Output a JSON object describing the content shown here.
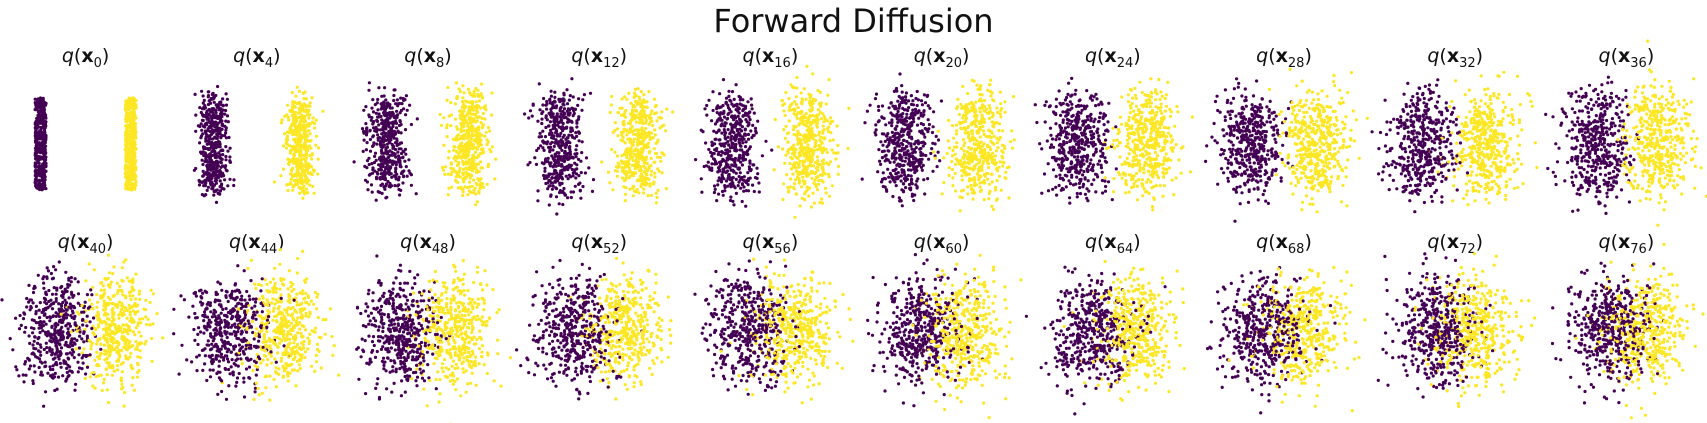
{
  "chart_data": {
    "type": "scatter",
    "title": "Forward Diffusion",
    "colors": {
      "class_a": "#440154",
      "class_b": "#fde725"
    },
    "panel_label_parts": {
      "func": "q",
      "var": "x"
    },
    "panels": [
      {
        "label": "q(x_0)",
        "t": 0,
        "mix": 0.0
      },
      {
        "label": "q(x_4)",
        "t": 4,
        "mix": 0.1
      },
      {
        "label": "q(x_8)",
        "t": 8,
        "mix": 0.19
      },
      {
        "label": "q(x_12)",
        "t": 12,
        "mix": 0.27
      },
      {
        "label": "q(x_16)",
        "t": 16,
        "mix": 0.34
      },
      {
        "label": "q(x_20)",
        "t": 20,
        "mix": 0.41
      },
      {
        "label": "q(x_24)",
        "t": 24,
        "mix": 0.47
      },
      {
        "label": "q(x_28)",
        "t": 28,
        "mix": 0.53
      },
      {
        "label": "q(x_32)",
        "t": 32,
        "mix": 0.58
      },
      {
        "label": "q(x_36)",
        "t": 36,
        "mix": 0.63
      },
      {
        "label": "q(x_40)",
        "t": 40,
        "mix": 0.68
      },
      {
        "label": "q(x_44)",
        "t": 44,
        "mix": 0.73
      },
      {
        "label": "q(x_48)",
        "t": 48,
        "mix": 0.77
      },
      {
        "label": "q(x_52)",
        "t": 52,
        "mix": 0.81
      },
      {
        "label": "q(x_56)",
        "t": 56,
        "mix": 0.85
      },
      {
        "label": "q(x_60)",
        "t": 60,
        "mix": 0.88
      },
      {
        "label": "q(x_64)",
        "t": 64,
        "mix": 0.91
      },
      {
        "label": "q(x_68)",
        "t": 68,
        "mix": 0.94
      },
      {
        "label": "q(x_72)",
        "t": 72,
        "mix": 0.97
      },
      {
        "label": "q(x_76)",
        "t": 76,
        "mix": 1.0
      }
    ]
  }
}
